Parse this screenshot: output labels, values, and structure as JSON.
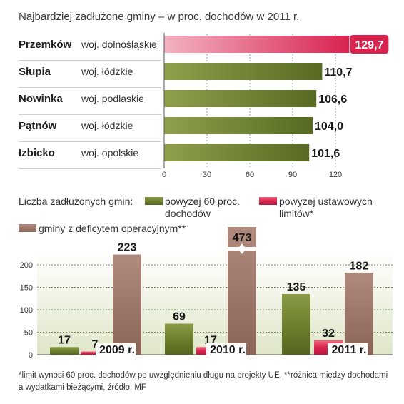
{
  "chart_data": [
    {
      "type": "bar",
      "orientation": "horizontal",
      "title": "Najbardziej zadłużone gminy – w proc. dochodów w 2011 r.",
      "categories": [
        "Przemków",
        "Słupia",
        "Nowinka",
        "Pątnów",
        "Izbicko"
      ],
      "regions": [
        "woj. dolnośląskie",
        "woj. łódzkie",
        "woj. podlaskie",
        "woj. łódzkie",
        "woj. opolskie"
      ],
      "values": [
        129.7,
        110.7,
        106.6,
        104.0,
        101.6
      ],
      "value_labels": [
        "129,7",
        "110,7",
        "106,6",
        "104,0",
        "101,6"
      ],
      "xlim": [
        0,
        130
      ],
      "xticks": [
        "0",
        "30",
        "60",
        "90",
        "120"
      ],
      "highlight_color": "#d8234f",
      "bar_color": "#6b7e2c"
    },
    {
      "type": "bar",
      "orientation": "vertical",
      "title": "Liczba zadłużonych gmin:",
      "categories": [
        "2009 r.",
        "2010 r.",
        "2011 r."
      ],
      "series": [
        {
          "name": "powyżej 60 proc. dochodów",
          "values": [
            17,
            69,
            135
          ],
          "color": "#6b7e2c"
        },
        {
          "name": "powyżej ustawowych limitów*",
          "values": [
            7,
            17,
            32
          ],
          "color": "#d8234f"
        },
        {
          "name": "gminy z deficytem operacyjnym**",
          "values": [
            223,
            473,
            182
          ],
          "color": "#9b7466"
        }
      ],
      "legend_lines": {
        "s0": [
          "powyżej 60 proc.",
          "dochodów"
        ],
        "s1": [
          "powyżej ustawowych",
          "limitów*"
        ],
        "s2": [
          "gminy z deficytem operacyjnym**"
        ]
      },
      "ylim": [
        0,
        250
      ],
      "yticks": [
        "0",
        "50",
        "100",
        "150",
        "200"
      ],
      "axis_break": true,
      "grid": true
    }
  ],
  "footnote": [
    "*limit wynosi 60 proc. dochodów po uwzględnieniu długu na projekty UE, **różnica między dochodami",
    "a wydatkami bieżącymi, źródło: MF"
  ]
}
